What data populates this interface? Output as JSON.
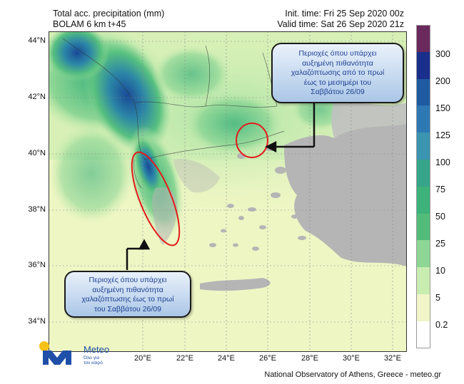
{
  "header": {
    "title_line1": "Total acc. precipitation (mm)",
    "title_line2": "BOLAM 6 km t+45",
    "init_time": "Init. time: Fri 25 Sep 2020 00z",
    "valid_time": "Valid time: Sat 26 Sep 2020 21z"
  },
  "map": {
    "lat_labels": [
      "44°N",
      "42°N",
      "40°N",
      "38°N",
      "36°N",
      "34°N"
    ],
    "lon_labels": [
      "20°E",
      "22°E",
      "24°E",
      "26°E",
      "28°E",
      "30°E",
      "32°E"
    ],
    "extent": {
      "lon": [
        18,
        32.5
      ],
      "lat": [
        33.5,
        44
      ]
    }
  },
  "colorbar": {
    "unit": "mm",
    "levels": [
      "300",
      "200",
      "150",
      "125",
      "100",
      "75",
      "50",
      "25",
      "10",
      "5",
      "0.2"
    ],
    "colors": [
      "#6b2a5e",
      "#1a2f8c",
      "#1f5ba1",
      "#2e78b4",
      "#3b94b0",
      "#37a58a",
      "#3db27a",
      "#52bd7a",
      "#8dd695",
      "#c9ecb0",
      "#f1f5c8",
      "#ffffff"
    ]
  },
  "annotations": {
    "top_callout": [
      "Περιοχές όπου υπάρχει",
      "αυξημένη πιθανότητα",
      "χαλαζόπτωσης από το πρωί",
      "έως το μεσημέρι  του",
      "Σαββάτου 26/09"
    ],
    "bottom_callout": [
      "Περιοχές όπου υπάρχει",
      "αυξημένη πιθανότητα",
      "χαλαζόπτωσης έως το πρωί",
      "του Σαββάτου  26/09"
    ]
  },
  "logo": {
    "brand": "Meteo",
    "tagline_line1": "Όλα για",
    "tagline_line2": "τον καιρό"
  },
  "footer": "National Observatory of Athens, Greece - meteo.gr"
}
